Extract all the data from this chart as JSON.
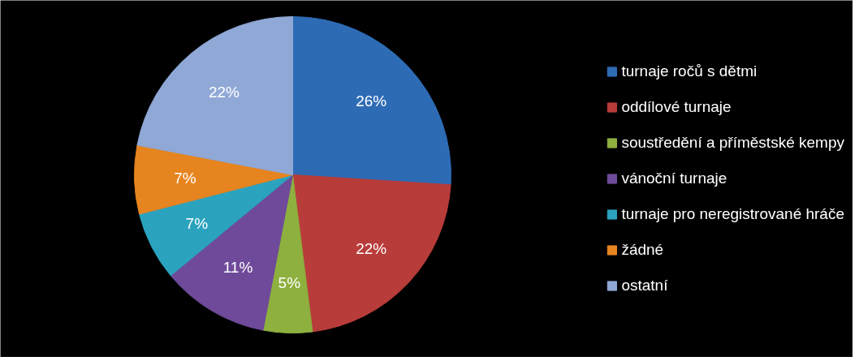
{
  "chart_data": {
    "type": "pie",
    "categories": [
      "turnaje ročů s dětmi",
      "oddílové turnaje",
      "soustředění a příměstské kempy",
      "vánoční turnaje",
      "turnaje pro neregistrované hráče",
      "žádné",
      "ostatní"
    ],
    "values": [
      26,
      22,
      5,
      11,
      7,
      7,
      22
    ],
    "value_labels": [
      "26%",
      "22%",
      "5%",
      "11%",
      "7%",
      "7%",
      "22%"
    ],
    "colors": [
      "#2e6bb5",
      "#b83c3a",
      "#8db03f",
      "#6f4a9a",
      "#2ba3bf",
      "#e6841f",
      "#8fa8d6"
    ],
    "legend": "right"
  }
}
